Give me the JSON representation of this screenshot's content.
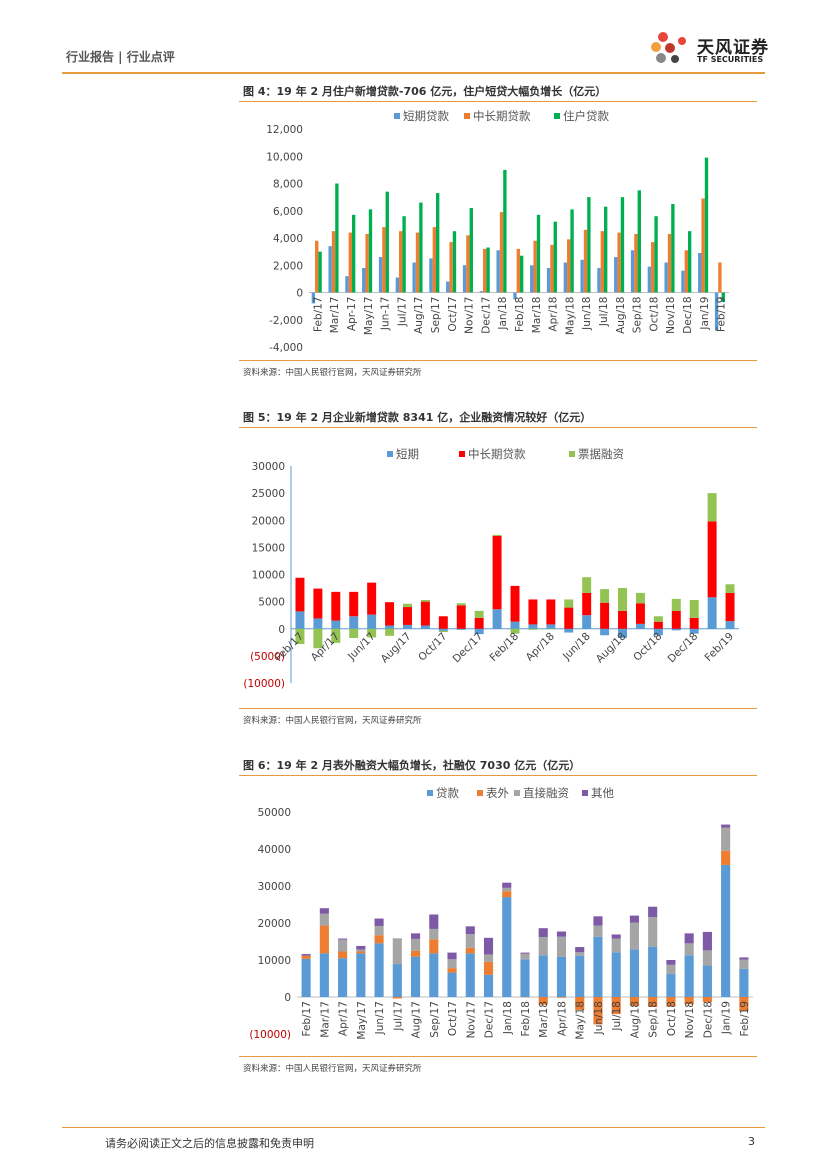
{
  "header": {
    "left": "行业报告 | 行业点评",
    "logo_cn": "天风证券",
    "logo_en": "TF SECURITIES"
  },
  "footer": {
    "disclaimer": "请务必阅读正文之后的信息披露和免责申明",
    "page": "3"
  },
  "colors": {
    "accent": "#e69a3c",
    "blue": "#5b9bd5",
    "orange": "#ed7d31",
    "green": "#00b050",
    "red": "#ff0000",
    "lightgreen": "#92c353",
    "gray": "#a5a5a5",
    "purple": "#7e5aa6",
    "negative_label": "#c00000"
  },
  "figures": [
    {
      "title": "图 4：19 年 2 月住户新增贷款-706 亿元，住户短贷大幅负增长（亿元）",
      "source": "资料来源：中国人民银行官网，天风证券研究所"
    },
    {
      "title": "图 5：19 年 2 月企业新增贷款 8341 亿，企业融资情况较好（亿元）",
      "source": "资料来源：中国人民银行官网，天风证券研究所"
    },
    {
      "title": "图 6：19 年 2 月表外融资大幅负增长，社融仅 7030 亿元（亿元）",
      "source": "资料来源：中国人民银行官网，天风证券研究所"
    }
  ],
  "chart_data": [
    {
      "type": "bar",
      "categories": [
        "Feb/17",
        "Mar/17",
        "Apr-17",
        "May/17",
        "Jun-17",
        "Jul/17",
        "Aug/17",
        "Sep/17",
        "Oct/17",
        "Nov/17",
        "Dec/17",
        "Jan/18",
        "Feb/18",
        "Mar/18",
        "Apr/18",
        "May/18",
        "Jun/18",
        "Jul/18",
        "Aug/18",
        "Sep/18",
        "Oct/18",
        "Nov/18",
        "Dec/18",
        "Jan/19",
        "Feb/19"
      ],
      "series": [
        {
          "name": "短期贷款",
          "values": [
            -800,
            3400,
            1200,
            1800,
            2600,
            1100,
            2200,
            2500,
            800,
            2000,
            100,
            3100,
            -500,
            2000,
            1800,
            2200,
            2400,
            1800,
            2600,
            3100,
            1900,
            2200,
            1600,
            2900,
            -2800
          ]
        },
        {
          "name": "中长期贷款",
          "values": [
            3800,
            4500,
            4400,
            4300,
            4800,
            4500,
            4400,
            4800,
            3700,
            4200,
            3200,
            5900,
            3200,
            3800,
            3500,
            3900,
            4600,
            4500,
            4400,
            4300,
            3700,
            4300,
            3100,
            6900,
            2200
          ]
        },
        {
          "name": "住户贷款",
          "values": [
            3000,
            8000,
            5700,
            6100,
            7400,
            5600,
            6600,
            7300,
            4500,
            6200,
            3300,
            9000,
            2700,
            5700,
            5200,
            6100,
            7000,
            6300,
            7000,
            7500,
            5600,
            6500,
            4500,
            9900,
            -700
          ]
        }
      ],
      "yticks": [
        "12,000",
        "10,000",
        "8,000",
        "6,000",
        "4,000",
        "2,000",
        "0",
        "-2,000",
        "-4,000"
      ],
      "ylim": [
        -4000,
        12000
      ],
      "legend": "top"
    },
    {
      "type": "bar",
      "stacked": true,
      "categories": [
        "Feb/17",
        "Mar/17",
        "Apr/17",
        "May/17",
        "Jun/17",
        "Jul/17",
        "Aug/17",
        "Sep/17",
        "Oct/17",
        "Nov/17",
        "Dec/17",
        "Jan/18",
        "Feb/18",
        "Mar/18",
        "Apr/18",
        "May/18",
        "Jun/18",
        "Jul/18",
        "Aug/18",
        "Sep/18",
        "Oct/18",
        "Nov/18",
        "Dec/18",
        "Jan/19",
        "Feb/19"
      ],
      "xlabels": [
        "Feb/17",
        "Apr/17",
        "Jun/17",
        "Aug/17",
        "Oct/17",
        "Dec/17",
        "Feb/18",
        "Apr/18",
        "Jun/18",
        "Aug/18",
        "Oct/18",
        "Dec/18",
        "Feb/19"
      ],
      "series": [
        {
          "name": "短期",
          "values": [
            3200,
            1900,
            1500,
            2300,
            2600,
            600,
            700,
            600,
            -400,
            -200,
            -1000,
            3600,
            1300,
            800,
            800,
            -700,
            2500,
            -1200,
            -1700,
            900,
            -1200,
            -300,
            -900,
            5800,
            1400
          ]
        },
        {
          "name": "中长期贷款",
          "values": [
            6200,
            5500,
            5300,
            4500,
            5900,
            4300,
            3300,
            4400,
            2300,
            4300,
            2000,
            13500,
            6600,
            4600,
            4600,
            3900,
            4100,
            4800,
            3300,
            3800,
            1300,
            3300,
            2000,
            14000,
            5200
          ]
        },
        {
          "name": "票据融资",
          "values": [
            -2800,
            -3600,
            -2600,
            -1700,
            -1600,
            -1300,
            600,
            300,
            -200,
            400,
            1300,
            200,
            -900,
            -200,
            -100,
            1500,
            2900,
            2500,
            4200,
            1900,
            1000,
            2200,
            3300,
            5200,
            1600
          ]
        }
      ],
      "yticks": [
        "30000",
        "25000",
        "20000",
        "15000",
        "10000",
        "5000",
        "0",
        "(5000)",
        "(10000)"
      ],
      "ylim": [
        -10000,
        30000
      ],
      "legend": "top"
    },
    {
      "type": "bar",
      "stacked": true,
      "categories": [
        "Feb/17",
        "Mar/17",
        "Apr/17",
        "May/17",
        "Jun/17",
        "Jul/17",
        "Aug/17",
        "Sep/17",
        "Oct/17",
        "Nov/17",
        "Dec/17",
        "Jan/18",
        "Feb/18",
        "Mar/18",
        "Apr/18",
        "May/18",
        "Jun/18",
        "Jul/18",
        "Aug/18",
        "Sep/18",
        "Oct/18",
        "Nov/18",
        "Dec/18",
        "Jan/19",
        "Feb/19"
      ],
      "series": [
        {
          "name": "贷款",
          "values": [
            10300,
            11800,
            10500,
            11800,
            14500,
            8900,
            10900,
            11800,
            6600,
            11800,
            6000,
            27000,
            10200,
            11300,
            10900,
            11100,
            16300,
            12100,
            12900,
            13600,
            6200,
            11300,
            8500,
            35700,
            7600
          ]
        },
        {
          "name": "表外",
          "values": [
            900,
            7500,
            1800,
            500,
            2200,
            -400,
            1600,
            3800,
            1200,
            1500,
            3500,
            1600,
            -100,
            -2100,
            -200,
            -3500,
            -7400,
            -4600,
            -2400,
            -2700,
            -2600,
            -2000,
            -1400,
            3800,
            -3800
          ]
        },
        {
          "name": "直接融资",
          "values": [
            0,
            3200,
            3200,
            500,
            2500,
            6900,
            3200,
            2800,
            2400,
            3700,
            2000,
            900,
            1500,
            4900,
            5400,
            1000,
            3000,
            3700,
            7200,
            8000,
            2500,
            3200,
            4100,
            6300,
            2500
          ]
        },
        {
          "name": "其他",
          "values": [
            400,
            1500,
            300,
            1000,
            2000,
            0,
            1500,
            3900,
            1800,
            2100,
            4500,
            1400,
            300,
            2400,
            1400,
            1400,
            2500,
            1100,
            1900,
            2800,
            1300,
            2700,
            5000,
            800,
            600
          ]
        }
      ],
      "yticks": [
        "50000",
        "40000",
        "30000",
        "20000",
        "10000",
        "0",
        "(10000)"
      ],
      "ylim": [
        -10000,
        50000
      ],
      "legend": "top"
    }
  ]
}
